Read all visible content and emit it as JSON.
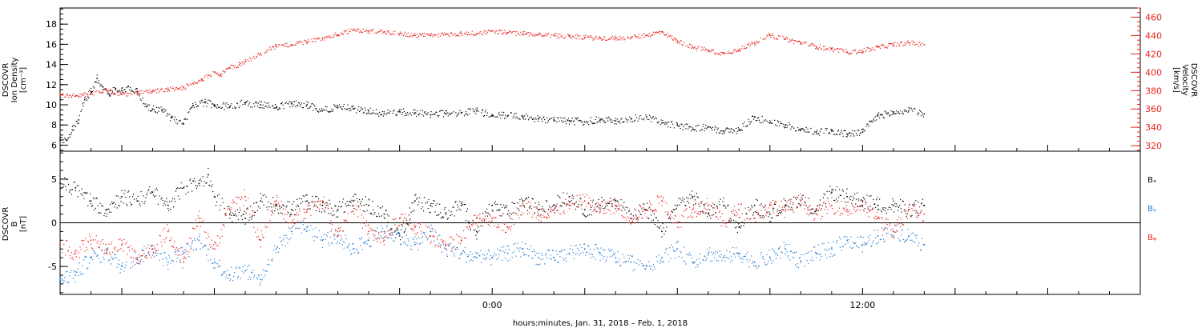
{
  "chart_data": [
    {
      "type": "scatter",
      "ylabel_lines": [
        "DSCOVR",
        "Ion Density",
        "[cm⁻³]"
      ],
      "ylim": [
        5.4,
        19.6
      ],
      "yticks": [
        6,
        8,
        10,
        12,
        14,
        16,
        18
      ],
      "ytick_labels": [
        "6",
        "8",
        "10",
        "12",
        "14",
        "16",
        "18"
      ],
      "y2label_lines": [
        "DSCOVR",
        "Velocity",
        "[km/s]"
      ],
      "y2lim": [
        314,
        470
      ],
      "y2ticks": [
        320,
        340,
        360,
        380,
        400,
        420,
        440,
        460
      ],
      "y2tick_labels": [
        "320",
        "340",
        "360",
        "380",
        "400",
        "420",
        "440",
        "460"
      ],
      "y2_color": "#e8251f",
      "series": [
        {
          "axis": "left",
          "color": "#000000",
          "x": [
            -14.0,
            -13.8,
            -13.6,
            -13.4,
            -13.2,
            -13.0,
            -12.8,
            -12.6,
            -12.4,
            -12.2,
            -12.0,
            -11.8,
            -11.5,
            -11.2,
            -11.0,
            -10.7,
            -10.4,
            -10.0,
            -9.7,
            -9.3,
            -9.0,
            -8.5,
            -8.0,
            -7.5,
            -7.0,
            -6.5,
            -6.0,
            -5.5,
            -5.0,
            -4.5,
            -4.0,
            -3.5,
            -3.0,
            -2.5,
            -2.0,
            -1.5,
            -1.0,
            -0.5,
            0.0,
            0.5,
            1.0,
            1.5,
            2.0,
            2.5,
            3.0,
            3.5,
            4.0,
            4.5,
            5.0,
            5.5,
            6.0,
            6.5,
            7.0,
            7.5,
            8.0,
            8.5,
            9.0,
            9.5,
            10.0,
            10.5,
            11.0,
            11.5,
            12.0,
            12.5,
            13.0,
            13.5,
            14.0
          ],
          "y": [
            6.5,
            6.5,
            7.5,
            8.5,
            10.5,
            11.3,
            12.6,
            11.5,
            11.0,
            11.6,
            11.4,
            11.8,
            11.3,
            9.8,
            9.6,
            9.5,
            8.7,
            8.1,
            9.9,
            10.2,
            10.0,
            9.8,
            10.2,
            10.0,
            9.7,
            10.1,
            10.0,
            9.4,
            9.8,
            9.6,
            9.4,
            9.1,
            9.3,
            9.2,
            9.0,
            9.1,
            9.2,
            9.4,
            9.0,
            8.9,
            8.8,
            8.6,
            8.5,
            8.4,
            8.3,
            8.5,
            8.4,
            8.6,
            8.8,
            8.2,
            8.0,
            7.6,
            7.8,
            7.4,
            7.5,
            8.8,
            8.2,
            8.0,
            7.5,
            7.3,
            7.4,
            7.1,
            7.3,
            8.9,
            9.2,
            9.4,
            9.1
          ]
        },
        {
          "axis": "right",
          "color": "#e8251f",
          "x": [
            -14.0,
            -13.5,
            -13.0,
            -12.5,
            -12.0,
            -11.5,
            -11.0,
            -10.5,
            -10.0,
            -9.7,
            -9.4,
            -9.0,
            -8.8,
            -8.5,
            -8.2,
            -8.0,
            -7.5,
            -7.0,
            -6.5,
            -6.0,
            -5.5,
            -5.0,
            -4.5,
            -4.0,
            -3.5,
            -3.0,
            -2.5,
            -2.0,
            -1.5,
            -1.0,
            -0.5,
            0.0,
            0.5,
            1.0,
            1.5,
            2.0,
            2.5,
            3.0,
            3.5,
            4.0,
            4.5,
            5.0,
            5.5,
            6.0,
            6.5,
            7.0,
            7.5,
            8.0,
            8.5,
            9.0,
            9.5,
            10.0,
            10.5,
            11.0,
            11.5,
            12.0,
            12.5,
            13.0,
            13.5,
            14.0
          ],
          "y": [
            375,
            374,
            377,
            380,
            376,
            377,
            379,
            381,
            383,
            388,
            392,
            400,
            397,
            405,
            408,
            412,
            420,
            428,
            430,
            433,
            437,
            441,
            446,
            445,
            444,
            442,
            440,
            440,
            441,
            442,
            442,
            445,
            443,
            442,
            441,
            440,
            439,
            438,
            437,
            437,
            438,
            440,
            444,
            434,
            427,
            424,
            420,
            425,
            432,
            440,
            436,
            432,
            428,
            425,
            422,
            423,
            427,
            430,
            432,
            430
          ]
        }
      ]
    },
    {
      "type": "scatter",
      "ylabel_lines": [
        "DSCOVR",
        "B",
        "[nT]"
      ],
      "ylim": [
        -8.2,
        8.2
      ],
      "yticks": [
        -5,
        0,
        5
      ],
      "ytick_labels": [
        "-5",
        "0",
        "5"
      ],
      "zero_line": true,
      "legend": [
        "Bₓ",
        "Bᵧ",
        "Bᵩ"
      ],
      "legend_placement": "right",
      "series": [
        {
          "name": "Bₓ",
          "color": "#000000",
          "x": [
            -14.0,
            -13.5,
            -13.0,
            -12.5,
            -12.0,
            -11.5,
            -11.0,
            -10.5,
            -10.0,
            -9.5,
            -9.2,
            -9.0,
            -8.5,
            -8.0,
            -7.5,
            -7.0,
            -6.5,
            -6.0,
            -5.5,
            -5.0,
            -4.5,
            -4.0,
            -3.5,
            -3.0,
            -2.5,
            -2.0,
            -1.5,
            -1.0,
            -0.5,
            0.0,
            0.5,
            1.0,
            1.5,
            2.0,
            2.5,
            3.0,
            3.5,
            4.0,
            4.5,
            5.0,
            5.5,
            6.0,
            6.5,
            7.0,
            7.5,
            8.0,
            8.5,
            9.0,
            9.5,
            10.0,
            10.5,
            11.0,
            11.5,
            12.0,
            12.5,
            13.0,
            13.5,
            14.0
          ],
          "y": [
            4.5,
            4.0,
            2.5,
            1.5,
            3.0,
            2.5,
            3.5,
            2.0,
            4.0,
            4.5,
            5.5,
            3.0,
            1.0,
            0.5,
            2.5,
            2.0,
            1.5,
            2.5,
            2.0,
            1.5,
            2.5,
            2.0,
            1.0,
            -1.5,
            2.5,
            2.0,
            1.0,
            2.0,
            -1.0,
            2.0,
            1.0,
            2.5,
            1.5,
            2.0,
            3.0,
            1.5,
            2.0,
            2.5,
            1.0,
            1.5,
            -1.0,
            2.0,
            3.0,
            1.0,
            2.0,
            -0.5,
            2.0,
            1.0,
            2.0,
            2.5,
            1.5,
            3.5,
            3.0,
            2.5,
            2.0,
            2.0,
            1.5,
            2.0
          ]
        },
        {
          "name": "Bᵧ",
          "color": "#1f78d1",
          "x": [
            -14.0,
            -13.5,
            -13.0,
            -12.5,
            -12.0,
            -11.5,
            -11.0,
            -10.5,
            -10.0,
            -9.5,
            -9.0,
            -8.5,
            -8.0,
            -7.5,
            -7.0,
            -6.5,
            -6.0,
            -5.5,
            -5.0,
            -4.5,
            -4.0,
            -3.5,
            -3.0,
            -2.5,
            -2.0,
            -1.5,
            -1.0,
            -0.5,
            0.0,
            0.5,
            1.0,
            1.5,
            2.0,
            2.5,
            3.0,
            3.5,
            4.0,
            4.5,
            5.0,
            5.5,
            6.0,
            6.5,
            7.0,
            7.5,
            8.0,
            8.5,
            9.0,
            9.5,
            10.0,
            10.5,
            11.0,
            11.5,
            12.0,
            12.5,
            13.0,
            13.5,
            14.0
          ],
          "y": [
            -6.5,
            -6.0,
            -4.0,
            -3.5,
            -5.0,
            -4.0,
            -3.0,
            -4.5,
            -3.5,
            -2.0,
            -4.5,
            -6.0,
            -5.5,
            -6.5,
            -3.0,
            -1.0,
            -0.5,
            -2.0,
            -1.5,
            -3.0,
            -2.0,
            -1.0,
            -1.5,
            -2.5,
            -1.0,
            -3.0,
            -3.5,
            -4.0,
            -4.0,
            -3.5,
            -3.0,
            -4.0,
            -4.0,
            -3.5,
            -3.0,
            -3.5,
            -4.0,
            -4.5,
            -5.0,
            -4.0,
            -3.0,
            -4.5,
            -3.5,
            -4.0,
            -3.5,
            -4.5,
            -4.0,
            -3.0,
            -4.5,
            -3.5,
            -3.0,
            -2.0,
            -2.5,
            -1.5,
            -1.0,
            -1.5,
            -2.5
          ]
        },
        {
          "name": "Bᵩ",
          "color": "#e8251f",
          "x": [
            -14.0,
            -13.5,
            -13.0,
            -12.5,
            -12.0,
            -11.5,
            -11.0,
            -10.5,
            -10.0,
            -9.5,
            -9.0,
            -8.5,
            -8.0,
            -7.5,
            -7.0,
            -6.5,
            -6.0,
            -5.5,
            -5.0,
            -4.5,
            -4.0,
            -3.5,
            -3.0,
            -2.5,
            -2.0,
            -1.5,
            -1.0,
            -0.5,
            0.0,
            0.5,
            1.0,
            1.5,
            2.0,
            2.5,
            3.0,
            3.5,
            4.0,
            4.5,
            5.0,
            5.5,
            6.0,
            6.5,
            7.0,
            7.5,
            8.0,
            8.5,
            9.0,
            9.5,
            10.0,
            10.5,
            11.0,
            11.5,
            12.0,
            12.5,
            13.0,
            13.5,
            14.0
          ],
          "y": [
            -2.5,
            -3.5,
            -2.0,
            -3.0,
            -2.5,
            -4.0,
            -3.0,
            -1.0,
            -4.5,
            0.5,
            -3.0,
            1.5,
            3.0,
            -2.0,
            2.5,
            0.0,
            1.5,
            2.5,
            -1.5,
            2.0,
            -1.0,
            -2.0,
            0.5,
            -0.5,
            -1.5,
            -2.5,
            -2.0,
            0.5,
            0.5,
            -0.5,
            2.0,
            1.0,
            1.5,
            2.0,
            2.5,
            1.5,
            2.0,
            0.5,
            1.5,
            2.5,
            0.0,
            1.5,
            2.0,
            0.0,
            1.5,
            0.5,
            2.0,
            1.5,
            2.5,
            1.0,
            2.0,
            1.5,
            2.0,
            0.5,
            -1.0,
            1.5,
            1.0
          ]
        }
      ]
    }
  ],
  "x_axis": {
    "xlim": [
      -14,
      21
    ],
    "tick_labels": [
      {
        "x": 0,
        "label": "0:00"
      },
      {
        "x": 12,
        "label": "12:00"
      }
    ],
    "xlabel": "hours:minutes, Jan. 31, 2018 – Feb.  1, 2018"
  }
}
